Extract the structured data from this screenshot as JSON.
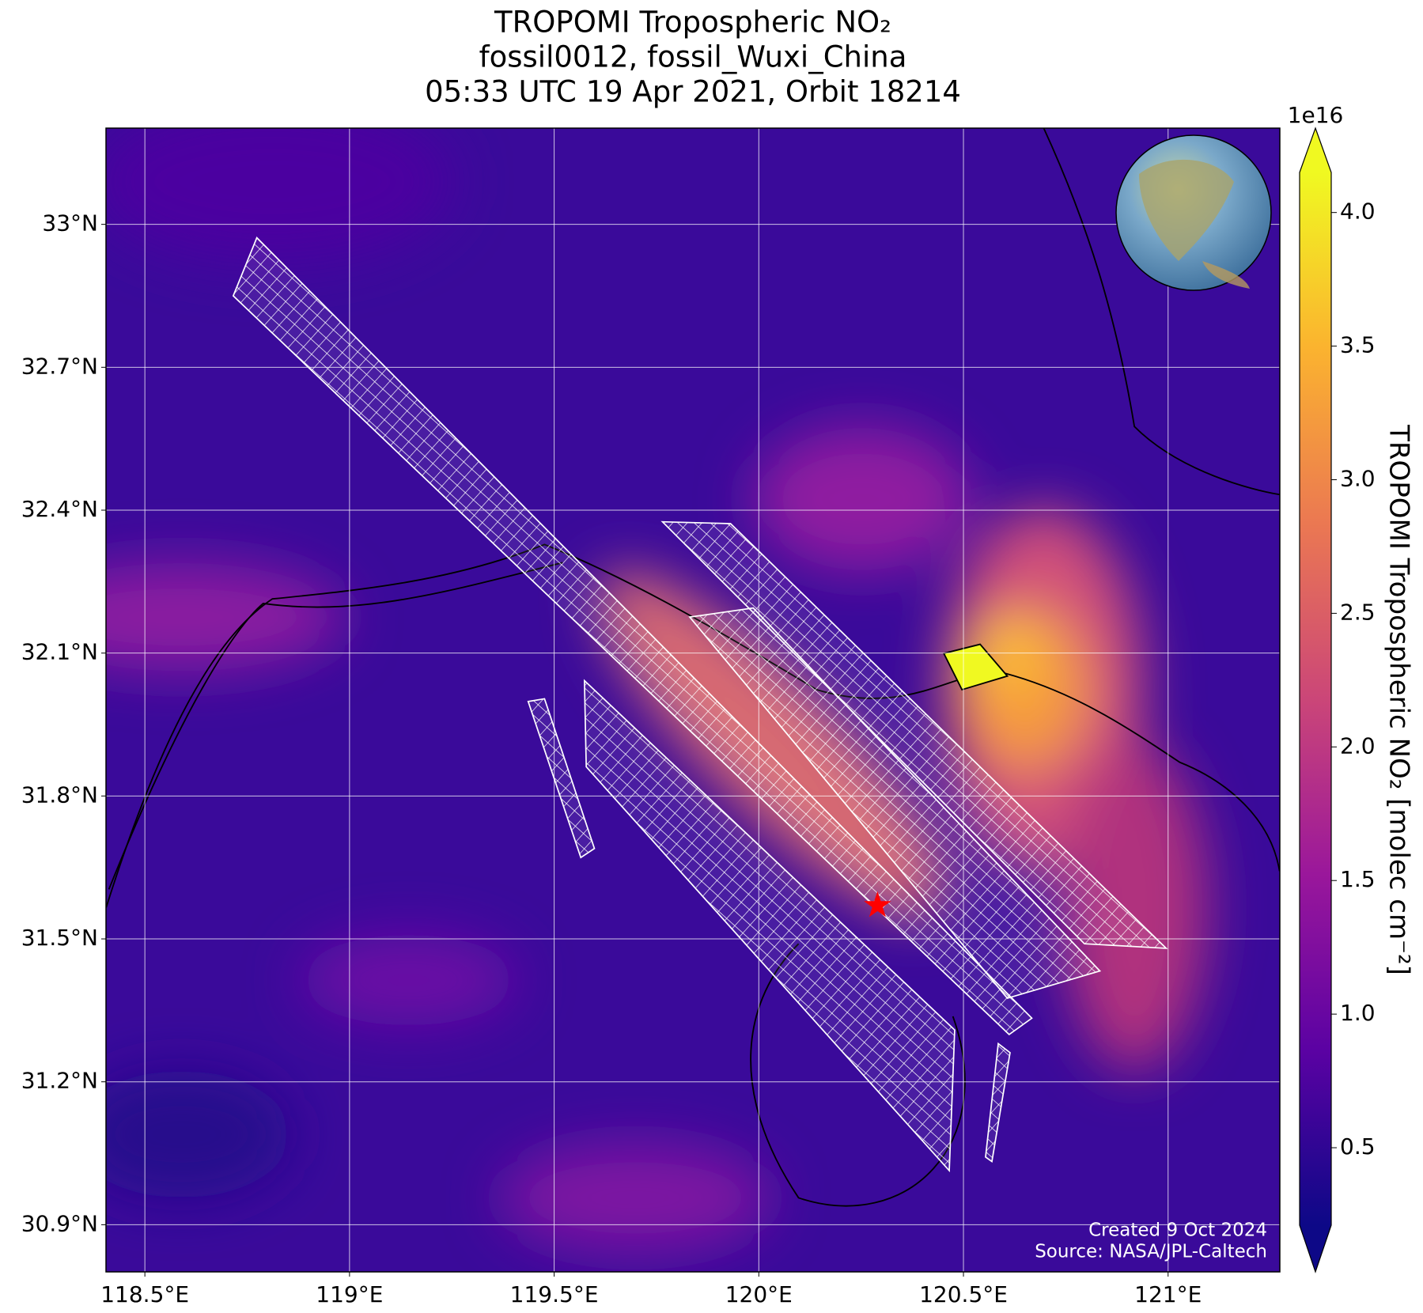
{
  "chart_data": {
    "type": "map",
    "title": [
      "TROPOMI Tropospheric NO₂",
      "fossil0012, fossil_Wuxi_China",
      "05:33 UTC 19 Apr 2021, Orbit 18214"
    ],
    "xlim": [
      118.405,
      121.273
    ],
    "ylim": [
      30.801,
      33.202
    ],
    "xticks": [
      {
        "value": 118.5,
        "label": "118.5°E"
      },
      {
        "value": 119,
        "label": "119°E"
      },
      {
        "value": 119.5,
        "label": "119.5°E"
      },
      {
        "value": 120,
        "label": "120°E"
      },
      {
        "value": 120.5,
        "label": "120.5°E"
      },
      {
        "value": 121,
        "label": "121°E"
      }
    ],
    "yticks": [
      {
        "value": 30.9,
        "label": "30.9°N"
      },
      {
        "value": 31.2,
        "label": "31.2°N"
      },
      {
        "value": 31.5,
        "label": "31.5°N"
      },
      {
        "value": 31.8,
        "label": "31.8°N"
      },
      {
        "value": 32.1,
        "label": "32.1°N"
      },
      {
        "value": 32.4,
        "label": "32.4°N"
      },
      {
        "value": 32.7,
        "label": "32.7°N"
      },
      {
        "value": 33,
        "label": "33°N"
      }
    ],
    "grid": true,
    "site": {
      "lon": 120.29,
      "lat": 31.57,
      "color": "#ff0000"
    },
    "colorbar": {
      "label": "TROPOMI Tropospheric NO₂ [molec cm⁻²]",
      "multiplier": "1e16",
      "lim": [
        0.21,
        4.15
      ],
      "ticks": [
        0.5,
        {
          "value": 1.0,
          "label": "1.0"
        },
        1.5,
        {
          "value": 2.0,
          "label": "2.0"
        },
        2.5,
        {
          "value": 3.0,
          "label": "3.0"
        },
        3.5,
        {
          "value": 4.0,
          "label": "4.0"
        }
      ],
      "colormap": [
        "#0d0887",
        "#5b02a3",
        "#9a179b",
        "#cb4678",
        "#eb7852",
        "#fbb32f",
        "#f0f921"
      ]
    },
    "credits": [
      "Created 9 Oct 2024",
      "Source: NASA/JPL-Caltech"
    ]
  }
}
